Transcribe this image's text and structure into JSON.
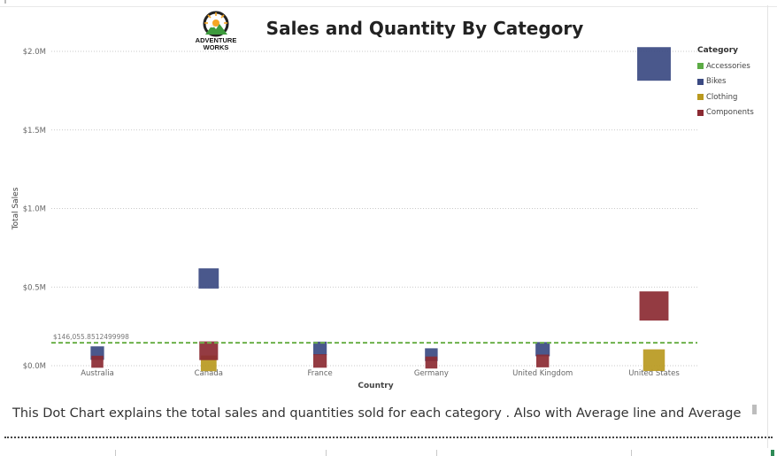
{
  "title": "Sales and Quantity By Category",
  "logo": {
    "line1": "ADVENTURE",
    "line2": "WORKS"
  },
  "caption": "This Dot Chart explains the total sales and quantities sold  for each category . Also with Average line and Average",
  "legend": {
    "title": "Category",
    "items": [
      {
        "label": "Accessories",
        "color": "#5cab45"
      },
      {
        "label": "Bikes",
        "color": "#3b4a82"
      },
      {
        "label": "Clothing",
        "color": "#b9991f"
      },
      {
        "label": "Components",
        "color": "#8b2a32"
      }
    ]
  },
  "chart_data": {
    "type": "scatter",
    "title": "Sales and Quantity By Category",
    "xlabel": "Country",
    "ylabel": "Total Sales",
    "categories": [
      "Australia",
      "Canada",
      "France",
      "Germany",
      "United Kingdom",
      "United States"
    ],
    "ylim": [
      0,
      2000000
    ],
    "yticks": [
      {
        "value": 0,
        "label": "$0.0M"
      },
      {
        "value": 500000,
        "label": "$0.5M"
      },
      {
        "value": 1000000,
        "label": "$1.0M"
      },
      {
        "value": 1500000,
        "label": "$1.5M"
      },
      {
        "value": 2000000,
        "label": "$2.0M"
      }
    ],
    "grid": true,
    "legend_position": "top-right",
    "reference_line": {
      "label": "$146,055.8512499998",
      "value": 146055.85,
      "color": "#6cb04a",
      "style": "dashed"
    },
    "series": [
      {
        "name": "Accessories",
        "color": "#5cab45",
        "points": []
      },
      {
        "name": "Bikes",
        "color": "#3b4a82",
        "points": [
          {
            "category": "Australia",
            "value": 80000,
            "size": 0.55
          },
          {
            "category": "Canada",
            "value": 555000,
            "size": 1.0
          },
          {
            "category": "France",
            "value": 110000,
            "size": 0.55
          },
          {
            "category": "Germany",
            "value": 70000,
            "size": 0.5
          },
          {
            "category": "United Kingdom",
            "value": 105000,
            "size": 0.6
          },
          {
            "category": "United States",
            "value": 1920000,
            "size": 1.9
          }
        ]
      },
      {
        "name": "Clothing",
        "color": "#b9991f",
        "points": [
          {
            "category": "Canada",
            "value": 15000,
            "size": 0.7
          },
          {
            "category": "United States",
            "value": 35000,
            "size": 1.1
          }
        ]
      },
      {
        "name": "Components",
        "color": "#8b2a32",
        "points": [
          {
            "category": "Australia",
            "value": 25000,
            "size": 0.45
          },
          {
            "category": "Canada",
            "value": 95000,
            "size": 0.9
          },
          {
            "category": "France",
            "value": 30000,
            "size": 0.55
          },
          {
            "category": "Germany",
            "value": 20000,
            "size": 0.45
          },
          {
            "category": "United Kingdom",
            "value": 30000,
            "size": 0.5
          },
          {
            "category": "United States",
            "value": 380000,
            "size": 1.6
          }
        ]
      }
    ]
  }
}
